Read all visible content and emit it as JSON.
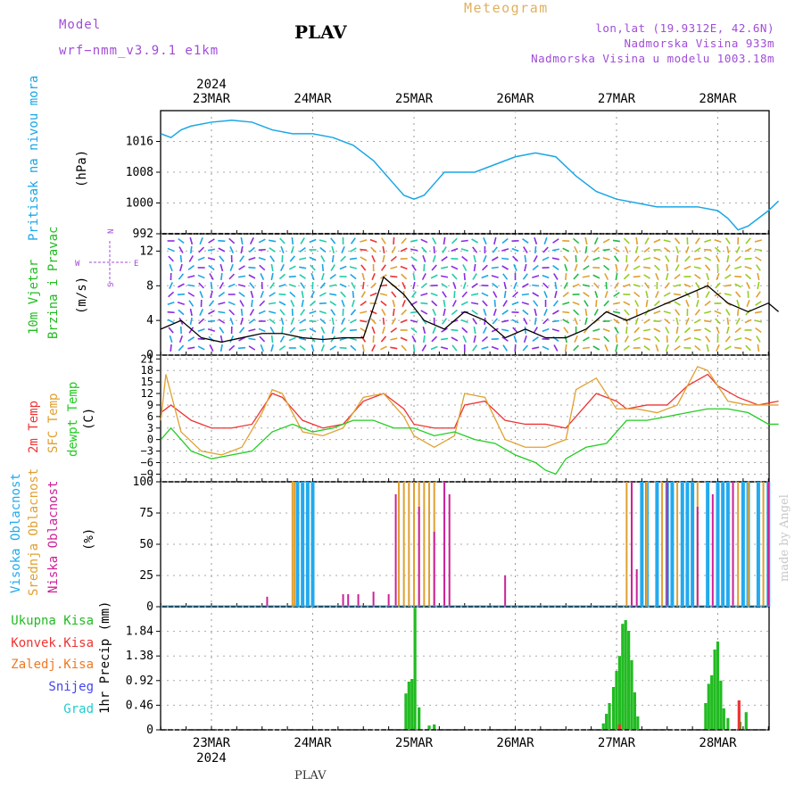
{
  "header": {
    "model_label": "Model",
    "model_name": "wrf−nmm_v3.9.1  e1km",
    "title": "PLAV",
    "product": "Meteogram",
    "lonlat": "lon,lat (19.9312E, 42.6N)",
    "altitude": "Nadmorska Visina 933m",
    "model_altitude": "Nadmorska Visina u modelu 1003.18m"
  },
  "credit": "made by Angel",
  "bottom_title": "PLAV",
  "time_axis": {
    "top_year": "2024",
    "bottom_year": "2024",
    "dates": [
      "23MAR",
      "24MAR",
      "25MAR",
      "26MAR",
      "27MAR",
      "28MAR"
    ]
  },
  "colors": {
    "pressure": "#1aa6e6",
    "wind_label": "#22bb22",
    "wind_barb_violet": "#8a2be2",
    "t2m": "#ee3333",
    "sfc": "#e0a030",
    "dewpoint": "#22cc22",
    "cloud_high": "#22aaee",
    "cloud_mid": "#e0a030",
    "cloud_low": "#cc2299",
    "precip_total": "#22bb22",
    "precip_conv": "#ee3333",
    "precip_frozen": "#f07820",
    "precip_snow": "#4444ee",
    "precip_hail": "#22cccc"
  },
  "chart_data": [
    {
      "type": "line",
      "ylabel": [
        "Pritisak na nivou mora",
        "(hPa)"
      ],
      "x_unit": "days since 23MAR 00",
      "ylim": [
        992,
        1024
      ],
      "yticks": [
        992,
        1000,
        1008,
        1016
      ],
      "series": [
        {
          "name": "Pritisak na nivou mora",
          "x": [
            -0.5,
            -0.4,
            -0.3,
            -0.2,
            0.0,
            0.2,
            0.4,
            0.6,
            0.8,
            1.0,
            1.2,
            1.4,
            1.6,
            1.7,
            1.8,
            1.9,
            2.0,
            2.1,
            2.2,
            2.3,
            2.4,
            2.6,
            2.8,
            3.0,
            3.2,
            3.4,
            3.6,
            3.8,
            4.0,
            4.2,
            4.4,
            4.6,
            4.8,
            5.0,
            5.1,
            5.2,
            5.3,
            5.4,
            5.5,
            5.6
          ],
          "values": [
            1018,
            1017,
            1019,
            1020,
            1021,
            1021.5,
            1021,
            1019,
            1018,
            1018,
            1017,
            1015,
            1011,
            1008,
            1005,
            1002,
            1001,
            1002,
            1005,
            1008,
            1008,
            1008,
            1010,
            1012,
            1013,
            1012,
            1007,
            1003,
            1001,
            1000,
            999,
            999,
            999,
            998,
            996,
            993,
            994,
            996,
            998,
            1000.5
          ]
        }
      ]
    },
    {
      "type": "line",
      "ylabel": [
        "10m Vjetar",
        "Brzina i Pravac",
        "(m/s)"
      ],
      "compass": {
        "n": "N",
        "s": "S",
        "e": "E",
        "w": "W"
      },
      "x_unit": "days since 23MAR 00",
      "ylim": [
        0,
        14
      ],
      "yticks": [
        0,
        4,
        8,
        12
      ],
      "series": [
        {
          "name": "10m Vjetar",
          "x": [
            -0.5,
            -0.3,
            -0.1,
            0.1,
            0.3,
            0.5,
            0.7,
            0.9,
            1.1,
            1.3,
            1.5,
            1.7,
            1.9,
            2.1,
            2.3,
            2.5,
            2.7,
            2.9,
            3.1,
            3.3,
            3.5,
            3.7,
            3.9,
            4.1,
            4.3,
            4.5,
            4.7,
            4.9,
            5.1,
            5.3,
            5.5,
            5.6
          ],
          "values": [
            3,
            4,
            2,
            1.5,
            2,
            2.5,
            2.5,
            2,
            1.8,
            2,
            2,
            9,
            7,
            4,
            3,
            5,
            4,
            2,
            3,
            2,
            2,
            3,
            5,
            4,
            5,
            6,
            7,
            8,
            6,
            5,
            6,
            5
          ]
        }
      ]
    },
    {
      "type": "line",
      "ylabel": [
        "2m Temp",
        "SFC Temp",
        "dewpt Temp",
        "(C)"
      ],
      "x_unit": "days since 23MAR 00",
      "ylim": [
        -11,
        22
      ],
      "yticks": [
        -9,
        -6,
        -3,
        0,
        3,
        6,
        9,
        12,
        15,
        18,
        21
      ],
      "series": [
        {
          "name": "2m Temp",
          "x": [
            -0.5,
            -0.4,
            -0.2,
            0.0,
            0.2,
            0.4,
            0.5,
            0.6,
            0.7,
            0.9,
            1.1,
            1.3,
            1.5,
            1.7,
            1.9,
            2.0,
            2.2,
            2.4,
            2.5,
            2.7,
            2.9,
            3.1,
            3.3,
            3.5,
            3.6,
            3.8,
            4.0,
            4.1,
            4.3,
            4.5,
            4.7,
            4.9,
            5.0,
            5.2,
            5.4,
            5.6
          ],
          "values": [
            7,
            9,
            5,
            3,
            3,
            4,
            8,
            12,
            11,
            5,
            3,
            4,
            10,
            12,
            8,
            4,
            3,
            3,
            9,
            10,
            5,
            4,
            4,
            3,
            6,
            12,
            10,
            8,
            9,
            9,
            14,
            17,
            14,
            11,
            9,
            10
          ]
        },
        {
          "name": "SFC Temp",
          "x": [
            -0.5,
            -0.45,
            -0.3,
            -0.1,
            0.1,
            0.3,
            0.5,
            0.6,
            0.7,
            0.9,
            1.1,
            1.3,
            1.5,
            1.7,
            1.9,
            2.0,
            2.2,
            2.4,
            2.5,
            2.7,
            2.9,
            3.1,
            3.3,
            3.5,
            3.6,
            3.8,
            4.0,
            4.2,
            4.4,
            4.6,
            4.8,
            4.9,
            5.1,
            5.3,
            5.6
          ],
          "values": [
            5,
            17,
            2,
            -3,
            -4,
            -2,
            7,
            13,
            12,
            2,
            1,
            3,
            11,
            12,
            6,
            1,
            -2,
            1,
            12,
            11,
            0,
            -2,
            -2,
            0,
            13,
            16,
            8,
            8,
            7,
            9,
            19,
            18,
            10,
            9,
            9
          ]
        },
        {
          "name": "dewpt Temp",
          "x": [
            -0.5,
            -0.4,
            -0.2,
            0.0,
            0.2,
            0.4,
            0.6,
            0.8,
            1.0,
            1.2,
            1.4,
            1.6,
            1.8,
            2.0,
            2.2,
            2.4,
            2.6,
            2.8,
            3.0,
            3.2,
            3.3,
            3.4,
            3.5,
            3.7,
            3.9,
            4.1,
            4.3,
            4.5,
            4.7,
            4.9,
            5.1,
            5.3,
            5.5,
            5.6
          ],
          "values": [
            0,
            3,
            -3,
            -5,
            -4,
            -3,
            2,
            4,
            2,
            3,
            5,
            5,
            3,
            3,
            1,
            2,
            0,
            -1,
            -4,
            -6,
            -8,
            -9,
            -5,
            -2,
            -1,
            5,
            5,
            6,
            7,
            8,
            8,
            7,
            4,
            4
          ]
        }
      ]
    },
    {
      "type": "bar",
      "ylabel": [
        "Visoka Oblacnost",
        "Srednja Oblacnost",
        "Niska Oblacnost",
        "(%)"
      ],
      "x_unit": "days since 23MAR 00",
      "ylim": [
        0,
        100
      ],
      "yticks": [
        0,
        25,
        50,
        75,
        100
      ],
      "series": [
        {
          "name": "Visoka Oblacnost",
          "x": [
            0.85,
            0.9,
            0.95,
            1.0,
            4.25,
            4.3,
            4.4,
            4.5,
            4.55,
            4.65,
            4.7,
            4.75,
            4.9,
            5.0,
            5.05,
            5.1,
            5.25,
            5.3,
            5.4,
            5.5
          ],
          "values": [
            100,
            100,
            100,
            100,
            100,
            100,
            100,
            100,
            100,
            100,
            100,
            100,
            100,
            100,
            100,
            100,
            100,
            100,
            100,
            100
          ]
        },
        {
          "name": "Srednja Oblacnost",
          "x": [
            0.8,
            0.82,
            1.85,
            1.9,
            1.95,
            2.0,
            2.05,
            2.1,
            2.15,
            2.2,
            2.3,
            4.1,
            4.15,
            4.3,
            4.45,
            4.6,
            4.8,
            5.15,
            5.2,
            5.3,
            5.45
          ],
          "values": [
            100,
            100,
            100,
            100,
            100,
            100,
            100,
            100,
            100,
            100,
            100,
            100,
            100,
            100,
            100,
            100,
            100,
            100,
            100,
            100,
            100
          ]
        },
        {
          "name": "Niska Oblacnost",
          "x": [
            0.55,
            1.3,
            1.35,
            1.45,
            1.6,
            1.75,
            1.82,
            2.05,
            2.2,
            2.3,
            2.35,
            2.9,
            4.15,
            4.2,
            4.5,
            4.8,
            4.95,
            5.15,
            5.5
          ],
          "values": [
            8,
            10,
            10,
            10,
            12,
            10,
            90,
            80,
            60,
            100,
            90,
            25,
            100,
            30,
            100,
            80,
            90,
            100,
            100
          ]
        }
      ]
    },
    {
      "type": "bar",
      "ylabel": [
        "Ukupna Kisa",
        "Konvek.Kisa",
        "Zaledj.Kisa",
        "Snijeg",
        "Grad",
        "1hr Precip (mm)"
      ],
      "x_unit": "days since 23MAR 00",
      "ylim": [
        0,
        2.3
      ],
      "yticks": [
        0,
        0.46,
        0.92,
        1.38,
        1.84
      ],
      "series": [
        {
          "name": "Ukupna Kisa",
          "x": [
            1.92,
            1.95,
            1.98,
            2.01,
            2.05,
            2.15,
            2.2,
            3.87,
            3.9,
            3.93,
            3.97,
            4.0,
            4.03,
            4.06,
            4.09,
            4.12,
            4.15,
            4.18,
            4.21,
            4.88,
            4.91,
            4.94,
            4.97,
            5.0,
            5.03,
            5.06,
            5.1,
            5.22,
            5.28
          ],
          "values": [
            0.68,
            0.9,
            0.95,
            2.28,
            0.42,
            0.08,
            0.1,
            0.12,
            0.3,
            0.5,
            0.8,
            1.1,
            1.38,
            1.98,
            2.05,
            1.85,
            1.3,
            0.7,
            0.25,
            0.5,
            0.86,
            1.02,
            1.5,
            1.65,
            0.92,
            0.4,
            0.22,
            0.15,
            0.33
          ]
        },
        {
          "name": "Konvek.Kisa",
          "x": [
            4.03,
            5.21
          ],
          "values": [
            0.1,
            0.55
          ]
        }
      ]
    }
  ]
}
